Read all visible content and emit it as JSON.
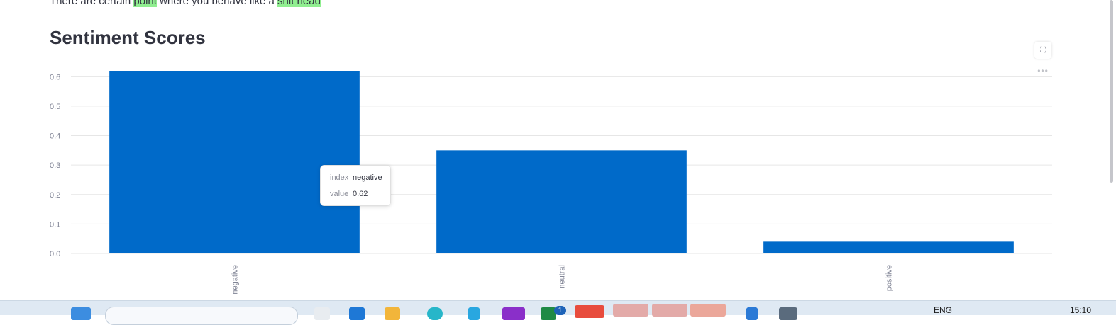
{
  "text": {
    "before_first": "There are certain ",
    "highlight_1": "point",
    "between": " where you behave like a ",
    "highlight_2": "shit head"
  },
  "section_title": "Sentiment Scores",
  "chart_data": {
    "type": "bar",
    "categories": [
      "negative",
      "neutral",
      "positive"
    ],
    "values": [
      0.62,
      0.35,
      0.04
    ],
    "ylim": [
      0,
      0.62
    ],
    "yticks": [
      "0.0",
      "0.1",
      "0.2",
      "0.3",
      "0.4",
      "0.5",
      "0.6"
    ],
    "bar_color": "#006ac9",
    "grid": true,
    "xlabel": "",
    "ylabel": "",
    "title": ""
  },
  "tooltip": {
    "index_key": "index",
    "index_value": "negative",
    "value_key": "value",
    "value_value": "0.62"
  },
  "toolbar": {
    "expand_icon": "expand-icon",
    "more_icon": "more-icon",
    "more_glyph": "•••"
  },
  "taskbar": {
    "lang": "ENG",
    "time": "15:10",
    "badge_count": "1"
  }
}
